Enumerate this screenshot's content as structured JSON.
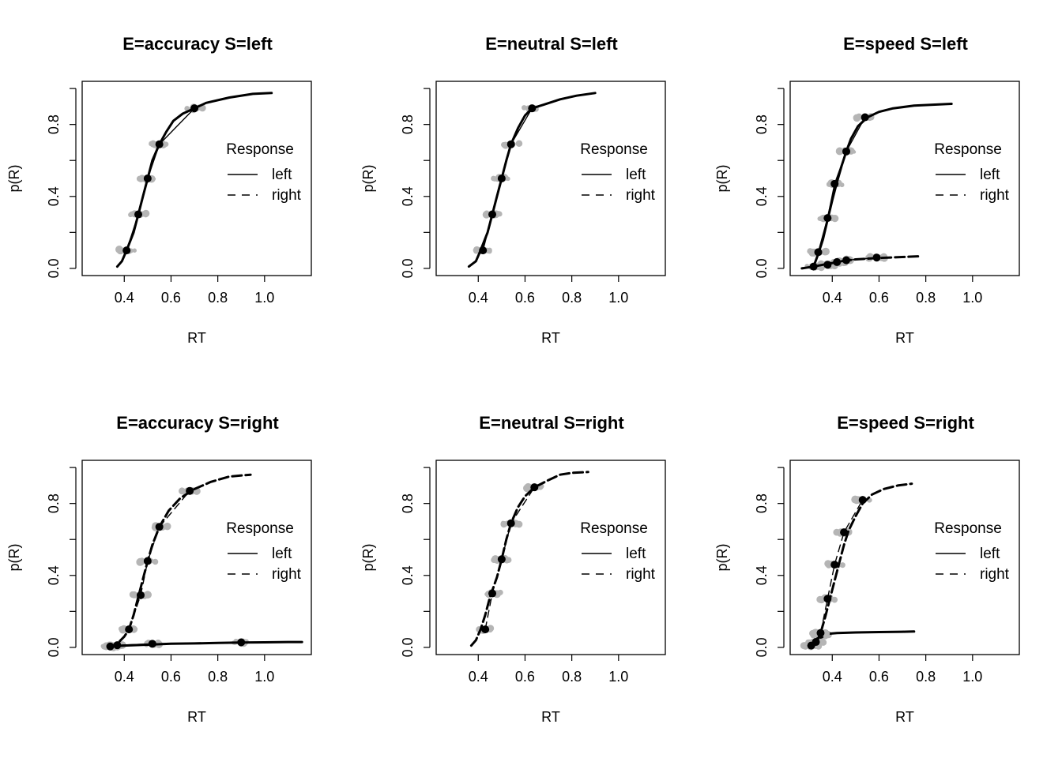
{
  "chart_data": [
    {
      "type": "line",
      "title": "E=accuracy S=left",
      "xlabel": "RT",
      "ylabel": "p(R)",
      "xlim": [
        0.22,
        1.2
      ],
      "ylim": [
        -0.04,
        1.04
      ],
      "xticks": [
        "0.4",
        "0.6",
        "0.8",
        "1.0"
      ],
      "yticks": [
        "0.0",
        "0.4",
        "0.8"
      ],
      "legend": {
        "title": "Response",
        "placement": "right",
        "entries": [
          "left",
          "right"
        ]
      },
      "series": [
        {
          "name": "left",
          "style": "solid",
          "predicted": [
            [
              0.37,
              0.01
            ],
            [
              0.39,
              0.04
            ],
            [
              0.41,
              0.1
            ],
            [
              0.44,
              0.2
            ],
            [
              0.46,
              0.3
            ],
            [
              0.48,
              0.4
            ],
            [
              0.5,
              0.5
            ],
            [
              0.52,
              0.6
            ],
            [
              0.55,
              0.69
            ],
            [
              0.58,
              0.76
            ],
            [
              0.61,
              0.82
            ],
            [
              0.65,
              0.86
            ],
            [
              0.7,
              0.89
            ],
            [
              0.75,
              0.92
            ],
            [
              0.85,
              0.95
            ],
            [
              0.95,
              0.97
            ],
            [
              1.03,
              0.975
            ]
          ],
          "observed": [
            [
              0.41,
              0.1
            ],
            [
              0.46,
              0.3
            ],
            [
              0.5,
              0.5
            ],
            [
              0.55,
              0.69
            ],
            [
              0.7,
              0.89
            ]
          ]
        }
      ]
    },
    {
      "type": "line",
      "title": "E=neutral S=left",
      "xlabel": "RT",
      "ylabel": "p(R)",
      "xlim": [
        0.22,
        1.2
      ],
      "ylim": [
        -0.04,
        1.04
      ],
      "xticks": [
        "0.4",
        "0.6",
        "0.8",
        "1.0"
      ],
      "yticks": [
        "0.0",
        "0.4",
        "0.8"
      ],
      "legend": {
        "title": "Response",
        "placement": "right",
        "entries": [
          "left",
          "right"
        ]
      },
      "series": [
        {
          "name": "left",
          "style": "solid",
          "predicted": [
            [
              0.36,
              0.01
            ],
            [
              0.39,
              0.04
            ],
            [
              0.41,
              0.1
            ],
            [
              0.44,
              0.2
            ],
            [
              0.46,
              0.3
            ],
            [
              0.48,
              0.4
            ],
            [
              0.5,
              0.5
            ],
            [
              0.52,
              0.6
            ],
            [
              0.54,
              0.69
            ],
            [
              0.57,
              0.78
            ],
            [
              0.6,
              0.85
            ],
            [
              0.63,
              0.89
            ],
            [
              0.68,
              0.91
            ],
            [
              0.75,
              0.94
            ],
            [
              0.82,
              0.96
            ],
            [
              0.9,
              0.975
            ]
          ],
          "observed": [
            [
              0.42,
              0.1
            ],
            [
              0.46,
              0.3
            ],
            [
              0.5,
              0.5
            ],
            [
              0.54,
              0.69
            ],
            [
              0.63,
              0.89
            ]
          ]
        }
      ]
    },
    {
      "type": "line",
      "title": "E=speed S=left",
      "xlabel": "RT",
      "ylabel": "p(R)",
      "xlim": [
        0.22,
        1.2
      ],
      "ylim": [
        -0.04,
        1.04
      ],
      "xticks": [
        "0.4",
        "0.6",
        "0.8",
        "1.0"
      ],
      "yticks": [
        "0.0",
        "0.4",
        "0.8"
      ],
      "legend": {
        "title": "Response",
        "placement": "right",
        "entries": [
          "left",
          "right"
        ]
      },
      "series": [
        {
          "name": "left",
          "style": "solid",
          "predicted": [
            [
              0.32,
              0.01
            ],
            [
              0.34,
              0.08
            ],
            [
              0.36,
              0.16
            ],
            [
              0.38,
              0.27
            ],
            [
              0.4,
              0.38
            ],
            [
              0.42,
              0.48
            ],
            [
              0.44,
              0.57
            ],
            [
              0.46,
              0.65
            ],
            [
              0.48,
              0.72
            ],
            [
              0.51,
              0.79
            ],
            [
              0.55,
              0.84
            ],
            [
              0.6,
              0.87
            ],
            [
              0.66,
              0.89
            ],
            [
              0.75,
              0.905
            ],
            [
              0.91,
              0.915
            ]
          ],
          "observed": [
            [
              0.34,
              0.09
            ],
            [
              0.38,
              0.28
            ],
            [
              0.41,
              0.47
            ],
            [
              0.46,
              0.65
            ],
            [
              0.54,
              0.84
            ]
          ]
        },
        {
          "name": "right",
          "style": "dashed",
          "predicted": [
            [
              0.27,
              0.0
            ],
            [
              0.32,
              0.01
            ],
            [
              0.36,
              0.02
            ],
            [
              0.4,
              0.03
            ],
            [
              0.45,
              0.042
            ],
            [
              0.5,
              0.05
            ],
            [
              0.6,
              0.058
            ],
            [
              0.7,
              0.063
            ],
            [
              0.77,
              0.067
            ]
          ],
          "observed": [
            [
              0.32,
              0.01
            ],
            [
              0.38,
              0.02
            ],
            [
              0.42,
              0.035
            ],
            [
              0.46,
              0.045
            ],
            [
              0.59,
              0.06
            ]
          ]
        }
      ]
    },
    {
      "type": "line",
      "title": "E=accuracy S=right",
      "xlabel": "RT",
      "ylabel": "p(R)",
      "xlim": [
        0.22,
        1.2
      ],
      "ylim": [
        -0.04,
        1.04
      ],
      "xticks": [
        "0.4",
        "0.6",
        "0.8",
        "1.0"
      ],
      "yticks": [
        "0.0",
        "0.4",
        "0.8"
      ],
      "legend": {
        "title": "Response",
        "placement": "right",
        "entries": [
          "left",
          "right"
        ]
      },
      "series": [
        {
          "name": "left",
          "style": "solid",
          "predicted": [
            [
              0.33,
              0.005
            ],
            [
              0.4,
              0.01
            ],
            [
              0.5,
              0.015
            ],
            [
              0.6,
              0.02
            ],
            [
              0.7,
              0.022
            ],
            [
              0.8,
              0.025
            ],
            [
              0.9,
              0.027
            ],
            [
              1.0,
              0.028
            ],
            [
              1.1,
              0.03
            ],
            [
              1.16,
              0.03
            ]
          ],
          "observed": [
            [
              0.34,
              0.005
            ],
            [
              0.37,
              0.012
            ],
            [
              0.52,
              0.02
            ],
            [
              0.9,
              0.028
            ]
          ]
        },
        {
          "name": "right",
          "style": "dashed",
          "predicted": [
            [
              0.33,
              0.0
            ],
            [
              0.37,
              0.02
            ],
            [
              0.4,
              0.06
            ],
            [
              0.42,
              0.1
            ],
            [
              0.44,
              0.18
            ],
            [
              0.46,
              0.28
            ],
            [
              0.48,
              0.38
            ],
            [
              0.5,
              0.48
            ],
            [
              0.52,
              0.57
            ],
            [
              0.55,
              0.67
            ],
            [
              0.59,
              0.76
            ],
            [
              0.64,
              0.83
            ],
            [
              0.7,
              0.88
            ],
            [
              0.77,
              0.92
            ],
            [
              0.85,
              0.95
            ],
            [
              0.94,
              0.96
            ]
          ],
          "observed": [
            [
              0.42,
              0.1
            ],
            [
              0.47,
              0.29
            ],
            [
              0.5,
              0.48
            ],
            [
              0.55,
              0.67
            ],
            [
              0.68,
              0.87
            ]
          ]
        }
      ]
    },
    {
      "type": "line",
      "title": "E=neutral S=right",
      "xlabel": "RT",
      "ylabel": "p(R)",
      "xlim": [
        0.22,
        1.2
      ],
      "ylim": [
        -0.04,
        1.04
      ],
      "xticks": [
        "0.4",
        "0.6",
        "0.8",
        "1.0"
      ],
      "yticks": [
        "0.0",
        "0.4",
        "0.8"
      ],
      "legend": {
        "title": "Response",
        "placement": "right",
        "entries": [
          "left",
          "right"
        ]
      },
      "series": [
        {
          "name": "right",
          "style": "dashed",
          "predicted": [
            [
              0.37,
              0.01
            ],
            [
              0.39,
              0.04
            ],
            [
              0.41,
              0.1
            ],
            [
              0.43,
              0.18
            ],
            [
              0.45,
              0.28
            ],
            [
              0.48,
              0.39
            ],
            [
              0.5,
              0.49
            ],
            [
              0.52,
              0.6
            ],
            [
              0.54,
              0.69
            ],
            [
              0.57,
              0.78
            ],
            [
              0.6,
              0.84
            ],
            [
              0.64,
              0.89
            ],
            [
              0.7,
              0.93
            ],
            [
              0.75,
              0.96
            ],
            [
              0.8,
              0.97
            ],
            [
              0.87,
              0.975
            ]
          ],
          "observed": [
            [
              0.43,
              0.1
            ],
            [
              0.46,
              0.3
            ],
            [
              0.5,
              0.49
            ],
            [
              0.54,
              0.69
            ],
            [
              0.64,
              0.89
            ]
          ]
        }
      ]
    },
    {
      "type": "line",
      "title": "E=speed S=right",
      "xlabel": "RT",
      "ylabel": "p(R)",
      "xlim": [
        0.22,
        1.2
      ],
      "ylim": [
        -0.04,
        1.04
      ],
      "xticks": [
        "0.4",
        "0.6",
        "0.8",
        "1.0"
      ],
      "yticks": [
        "0.0",
        "0.4",
        "0.8"
      ],
      "legend": {
        "title": "Response",
        "placement": "right",
        "entries": [
          "left",
          "right"
        ]
      },
      "series": [
        {
          "name": "left",
          "style": "solid",
          "predicted": [
            [
              0.31,
              0.01
            ],
            [
              0.33,
              0.04
            ],
            [
              0.35,
              0.07
            ],
            [
              0.38,
              0.075
            ],
            [
              0.42,
              0.08
            ],
            [
              0.5,
              0.083
            ],
            [
              0.6,
              0.085
            ],
            [
              0.7,
              0.087
            ],
            [
              0.75,
              0.088
            ]
          ],
          "observed": [
            [
              0.31,
              0.01
            ],
            [
              0.33,
              0.03
            ],
            [
              0.35,
              0.07
            ]
          ]
        },
        {
          "name": "right",
          "style": "dashed",
          "predicted": [
            [
              0.33,
              0.02
            ],
            [
              0.35,
              0.08
            ],
            [
              0.37,
              0.17
            ],
            [
              0.39,
              0.27
            ],
            [
              0.41,
              0.37
            ],
            [
              0.43,
              0.47
            ],
            [
              0.45,
              0.57
            ],
            [
              0.47,
              0.65
            ],
            [
              0.5,
              0.73
            ],
            [
              0.53,
              0.8
            ],
            [
              0.57,
              0.85
            ],
            [
              0.62,
              0.88
            ],
            [
              0.68,
              0.9
            ],
            [
              0.74,
              0.91
            ]
          ],
          "observed": [
            [
              0.35,
              0.08
            ],
            [
              0.38,
              0.27
            ],
            [
              0.41,
              0.46
            ],
            [
              0.45,
              0.64
            ],
            [
              0.53,
              0.82
            ]
          ]
        }
      ]
    }
  ]
}
